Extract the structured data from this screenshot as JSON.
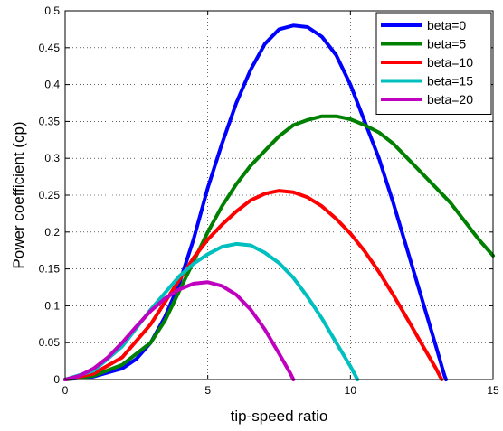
{
  "chart_data": {
    "type": "line",
    "title": "",
    "xlabel": "tip-speed ratio",
    "ylabel": "Power coefficient (cp)",
    "xlim": [
      0,
      15
    ],
    "ylim": [
      0,
      0.5
    ],
    "xticks": [
      0,
      5,
      10,
      15
    ],
    "yticks": [
      0,
      0.05,
      0.1,
      0.15,
      0.2,
      0.25,
      0.3,
      0.35,
      0.4,
      0.45,
      0.5
    ],
    "xtick_labels": [
      "0",
      "5",
      "10",
      "15"
    ],
    "ytick_labels": [
      "0",
      "0.05",
      "0.1",
      "0.15",
      "0.2",
      "0.25",
      "0.3",
      "0.35",
      "0.4",
      "0.45",
      "0.5"
    ],
    "grid": true,
    "legend_position": "top-right",
    "series": [
      {
        "name": "beta=0",
        "color": "#0000ff",
        "points": [
          [
            0,
            0
          ],
          [
            1,
            0.004
          ],
          [
            2,
            0.015
          ],
          [
            2.5,
            0.028
          ],
          [
            3,
            0.05
          ],
          [
            3.5,
            0.085
          ],
          [
            4,
            0.13
          ],
          [
            4.5,
            0.19
          ],
          [
            5,
            0.26
          ],
          [
            5.5,
            0.32
          ],
          [
            6,
            0.375
          ],
          [
            6.5,
            0.42
          ],
          [
            7,
            0.455
          ],
          [
            7.5,
            0.475
          ],
          [
            8,
            0.48
          ],
          [
            8.5,
            0.478
          ],
          [
            9,
            0.465
          ],
          [
            9.5,
            0.44
          ],
          [
            10,
            0.4
          ],
          [
            10.5,
            0.35
          ],
          [
            11,
            0.3
          ],
          [
            11.5,
            0.24
          ],
          [
            12,
            0.175
          ],
          [
            12.5,
            0.11
          ],
          [
            13,
            0.045
          ],
          [
            13.3,
            0.005
          ],
          [
            13.35,
            0
          ]
        ]
      },
      {
        "name": "beta=5",
        "color": "#008000",
        "points": [
          [
            0,
            0
          ],
          [
            1,
            0.005
          ],
          [
            2,
            0.02
          ],
          [
            3,
            0.05
          ],
          [
            3.5,
            0.08
          ],
          [
            4,
            0.12
          ],
          [
            4.5,
            0.16
          ],
          [
            5,
            0.2
          ],
          [
            5.5,
            0.235
          ],
          [
            6,
            0.265
          ],
          [
            6.5,
            0.29
          ],
          [
            7,
            0.31
          ],
          [
            7.5,
            0.33
          ],
          [
            8,
            0.345
          ],
          [
            8.5,
            0.352
          ],
          [
            9,
            0.357
          ],
          [
            9.5,
            0.357
          ],
          [
            10,
            0.353
          ],
          [
            10.5,
            0.345
          ],
          [
            11,
            0.335
          ],
          [
            11.5,
            0.32
          ],
          [
            12,
            0.3
          ],
          [
            12.5,
            0.28
          ],
          [
            13,
            0.26
          ],
          [
            13.5,
            0.24
          ],
          [
            14,
            0.215
          ],
          [
            14.5,
            0.19
          ],
          [
            15,
            0.168
          ]
        ]
      },
      {
        "name": "beta=10",
        "color": "#ff0000",
        "points": [
          [
            0,
            0
          ],
          [
            1,
            0.008
          ],
          [
            2,
            0.03
          ],
          [
            3,
            0.075
          ],
          [
            4,
            0.135
          ],
          [
            4.5,
            0.165
          ],
          [
            5,
            0.19
          ],
          [
            5.5,
            0.21
          ],
          [
            6,
            0.228
          ],
          [
            6.5,
            0.243
          ],
          [
            7,
            0.252
          ],
          [
            7.5,
            0.256
          ],
          [
            8,
            0.254
          ],
          [
            8.5,
            0.247
          ],
          [
            9,
            0.235
          ],
          [
            9.5,
            0.218
          ],
          [
            10,
            0.198
          ],
          [
            10.5,
            0.174
          ],
          [
            11,
            0.146
          ],
          [
            11.5,
            0.115
          ],
          [
            12,
            0.082
          ],
          [
            12.5,
            0.048
          ],
          [
            13,
            0.015
          ],
          [
            13.2,
            0
          ]
        ]
      },
      {
        "name": "beta=15",
        "color": "#00bfbf",
        "points": [
          [
            0,
            0
          ],
          [
            1,
            0.012
          ],
          [
            2,
            0.045
          ],
          [
            3,
            0.095
          ],
          [
            4,
            0.14
          ],
          [
            4.5,
            0.157
          ],
          [
            5,
            0.17
          ],
          [
            5.5,
            0.18
          ],
          [
            6,
            0.184
          ],
          [
            6.5,
            0.182
          ],
          [
            7,
            0.172
          ],
          [
            7.5,
            0.158
          ],
          [
            8,
            0.138
          ],
          [
            8.5,
            0.112
          ],
          [
            9,
            0.083
          ],
          [
            9.5,
            0.05
          ],
          [
            10,
            0.018
          ],
          [
            10.25,
            0
          ]
        ]
      },
      {
        "name": "beta=20",
        "color": "#bf00bf",
        "points": [
          [
            0,
            0
          ],
          [
            0.5,
            0.005
          ],
          [
            1,
            0.015
          ],
          [
            1.5,
            0.03
          ],
          [
            2,
            0.05
          ],
          [
            2.5,
            0.072
          ],
          [
            3,
            0.093
          ],
          [
            3.5,
            0.11
          ],
          [
            4,
            0.122
          ],
          [
            4.5,
            0.13
          ],
          [
            5,
            0.132
          ],
          [
            5.5,
            0.127
          ],
          [
            6,
            0.115
          ],
          [
            6.5,
            0.095
          ],
          [
            7,
            0.068
          ],
          [
            7.5,
            0.035
          ],
          [
            7.9,
            0.008
          ],
          [
            8,
            0
          ]
        ]
      }
    ]
  }
}
